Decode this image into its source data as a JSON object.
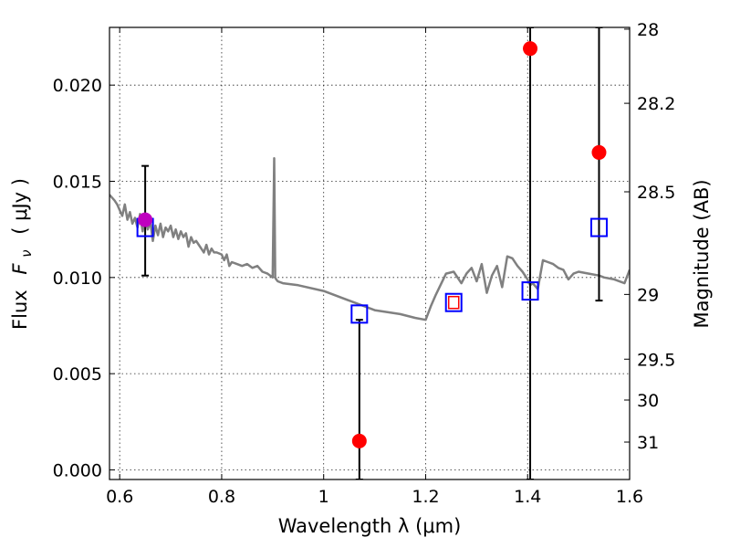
{
  "chart_data": {
    "type": "scatter",
    "xlabel": "Wavelength  λ (μm)",
    "ylabel": "Flux  F_ν  ( μJy )",
    "ylabel_left_text": "Flux",
    "ylabel_symbol_main": "F",
    "ylabel_symbol_sub": "ν",
    "ylabel_units": "( μJy )",
    "y2label": "Magnitude (AB)",
    "xlim": [
      0.58,
      1.6
    ],
    "ylim": [
      -0.0005,
      0.023
    ],
    "grid": true,
    "x_ticks": [
      0.6,
      0.8,
      1.0,
      1.2,
      1.4,
      1.6
    ],
    "x_tick_labels": [
      "0.6",
      "0.8",
      "1",
      "1.2",
      "1.4",
      "1.6"
    ],
    "y_ticks": [
      0.0,
      0.005,
      0.01,
      0.015,
      0.02
    ],
    "y_tick_labels": [
      "0.000",
      "0.005",
      "0.010",
      "0.015",
      "0.020"
    ],
    "mag_tick_labels": [
      "28",
      "28.2",
      "28.5",
      "29",
      "29.5",
      "30",
      "31"
    ],
    "series": [
      {
        "kind": "line",
        "color": "#808080",
        "x": [
          0.58,
          0.59,
          0.595,
          0.6,
          0.605,
          0.61,
          0.615,
          0.62,
          0.625,
          0.63,
          0.635,
          0.64,
          0.645,
          0.65,
          0.655,
          0.66,
          0.665,
          0.67,
          0.675,
          0.68,
          0.685,
          0.69,
          0.695,
          0.7,
          0.705,
          0.71,
          0.715,
          0.72,
          0.725,
          0.73,
          0.735,
          0.74,
          0.745,
          0.75,
          0.755,
          0.76,
          0.765,
          0.77,
          0.775,
          0.78,
          0.785,
          0.79,
          0.8,
          0.805,
          0.81,
          0.815,
          0.82,
          0.83,
          0.84,
          0.85,
          0.86,
          0.87,
          0.88,
          0.89,
          0.9,
          0.903,
          0.905,
          0.907,
          0.91,
          0.92,
          0.95,
          1.0,
          1.05,
          1.1,
          1.15,
          1.18,
          1.2,
          1.21,
          1.22,
          1.24,
          1.255,
          1.27,
          1.28,
          1.29,
          1.3,
          1.31,
          1.32,
          1.33,
          1.34,
          1.35,
          1.36,
          1.37,
          1.38,
          1.39,
          1.4,
          1.405,
          1.41,
          1.42,
          1.43,
          1.44,
          1.45,
          1.46,
          1.47,
          1.48,
          1.49,
          1.5,
          1.52,
          1.54,
          1.55,
          1.57,
          1.59,
          1.6
        ],
        "y": [
          0.0143,
          0.014,
          0.0138,
          0.0135,
          0.0132,
          0.0138,
          0.013,
          0.0134,
          0.0128,
          0.0131,
          0.0126,
          0.0133,
          0.0124,
          0.0131,
          0.0125,
          0.0129,
          0.0119,
          0.0127,
          0.0122,
          0.0128,
          0.0121,
          0.0126,
          0.0124,
          0.0127,
          0.0121,
          0.0125,
          0.012,
          0.0124,
          0.0121,
          0.0123,
          0.0116,
          0.0121,
          0.0118,
          0.0119,
          0.0117,
          0.0115,
          0.0113,
          0.0117,
          0.0112,
          0.0115,
          0.0113,
          0.0113,
          0.0112,
          0.0109,
          0.0112,
          0.0106,
          0.0108,
          0.0107,
          0.0106,
          0.0107,
          0.0105,
          0.0106,
          0.0103,
          0.0102,
          0.01,
          0.0162,
          0.01,
          0.0099,
          0.0098,
          0.0097,
          0.0096,
          0.0093,
          0.0088,
          0.0083,
          0.0081,
          0.0079,
          0.0078,
          0.0085,
          0.0091,
          0.0102,
          0.0103,
          0.0097,
          0.0102,
          0.0105,
          0.0098,
          0.0107,
          0.0092,
          0.0101,
          0.0106,
          0.0095,
          0.0111,
          0.011,
          0.0106,
          0.0103,
          0.0099,
          0.0096,
          0.0097,
          0.0094,
          0.0109,
          0.0108,
          0.0107,
          0.0105,
          0.0104,
          0.0099,
          0.0102,
          0.0103,
          0.0102,
          0.0101,
          0.01,
          0.0099,
          0.0097,
          0.0104
        ]
      },
      {
        "kind": "points",
        "marker": "open-square",
        "color": "#0000ff",
        "x": [
          0.65,
          1.07,
          1.255,
          1.405,
          1.54
        ],
        "y": [
          0.0126,
          0.0081,
          0.0087,
          0.0093,
          0.0126
        ]
      },
      {
        "kind": "points",
        "marker": "filled-circle",
        "color": "#ff0000",
        "x": [
          1.07,
          1.405,
          1.54
        ],
        "y": [
          0.0015,
          0.0219,
          0.0165
        ]
      },
      {
        "kind": "points",
        "marker": "filled-circle",
        "color": "#bf00bf",
        "x": [
          0.65
        ],
        "y": [
          0.013
        ]
      },
      {
        "kind": "points",
        "marker": "open-square-small",
        "color": "#ff0000",
        "x": [
          1.255
        ],
        "y": [
          0.0087
        ]
      }
    ],
    "error_bars": [
      {
        "x": 0.65,
        "low": 0.0101,
        "high": 0.0158
      },
      {
        "x": 1.07,
        "low": -0.0005,
        "high": 0.0078
      },
      {
        "x": 1.405,
        "low": -0.0005,
        "high": 0.023
      },
      {
        "x": 1.54,
        "low": 0.0088,
        "high": 0.023
      }
    ]
  }
}
